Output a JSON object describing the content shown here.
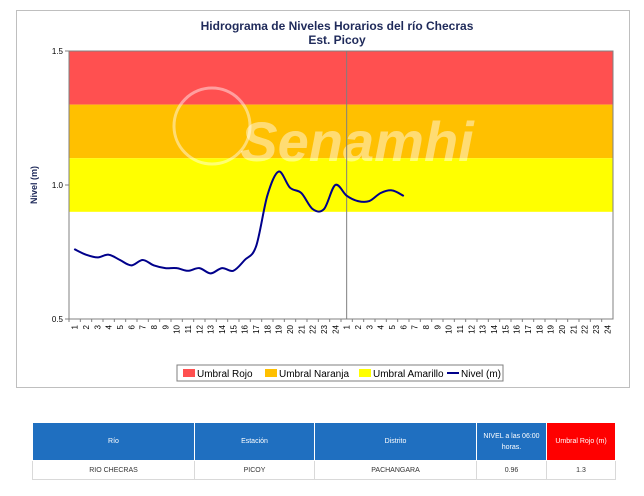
{
  "chart_data": {
    "type": "line",
    "title": "Hidrograma de Niveles Horarios del río Checras",
    "subtitle": "Est. Picoy",
    "ylabel": "Nivel (m)",
    "xlabel": "",
    "ylim": [
      0.5,
      1.5
    ],
    "yticks": [
      "0.5",
      "1.0",
      "1.5"
    ],
    "x_tick_labels": [
      "1",
      "2",
      "3",
      "4",
      "5",
      "6",
      "7",
      "8",
      "9",
      "10",
      "11",
      "12",
      "13",
      "14",
      "15",
      "16",
      "17",
      "18",
      "19",
      "20",
      "21",
      "22",
      "23",
      "24",
      "1",
      "2",
      "3",
      "4",
      "5",
      "6",
      "7",
      "8",
      "9",
      "10",
      "11",
      "12",
      "13",
      "14",
      "15",
      "16",
      "17",
      "18",
      "19",
      "20",
      "21",
      "22",
      "23",
      "24"
    ],
    "threshold_bands": [
      {
        "name": "Umbral Rojo",
        "from": 1.3,
        "to": 1.5,
        "color": "#ff5050"
      },
      {
        "name": "Umbral Naranja",
        "from": 1.1,
        "to": 1.3,
        "color": "#ffc000"
      },
      {
        "name": "Umbral Amarillo",
        "from": 0.9,
        "to": 1.1,
        "color": "#ffff00"
      }
    ],
    "series": [
      {
        "name": "Nivel (m)",
        "color": "#00008b",
        "x": [
          1,
          2,
          3,
          4,
          5,
          6,
          7,
          8,
          9,
          10,
          11,
          12,
          13,
          14,
          15,
          16,
          17,
          18,
          19,
          20,
          21,
          22,
          23,
          24,
          25,
          26,
          27,
          28,
          29,
          30
        ],
        "values": [
          0.76,
          0.74,
          0.73,
          0.74,
          0.72,
          0.7,
          0.72,
          0.7,
          0.69,
          0.69,
          0.68,
          0.69,
          0.67,
          0.69,
          0.68,
          0.72,
          0.77,
          0.96,
          1.05,
          0.99,
          0.97,
          0.91,
          0.91,
          1.0,
          0.96,
          0.94,
          0.94,
          0.97,
          0.98,
          0.96
        ]
      }
    ],
    "vertical_marker_x": 24.5,
    "legend_position": "bottom",
    "legend": [
      "Umbral Rojo",
      "Umbral Naranja",
      "Umbral Amarillo",
      "Nivel (m)"
    ],
    "watermark": "Senamhi"
  },
  "table": {
    "headers": [
      "Río",
      "Estación",
      "Distrito",
      "NIVEL a las 06:00 horas.",
      "Umbral Rojo (m)"
    ],
    "row": [
      "RIO CHECRAS",
      "PICOY",
      "PACHANGARA",
      "0.96",
      "1.3"
    ]
  }
}
